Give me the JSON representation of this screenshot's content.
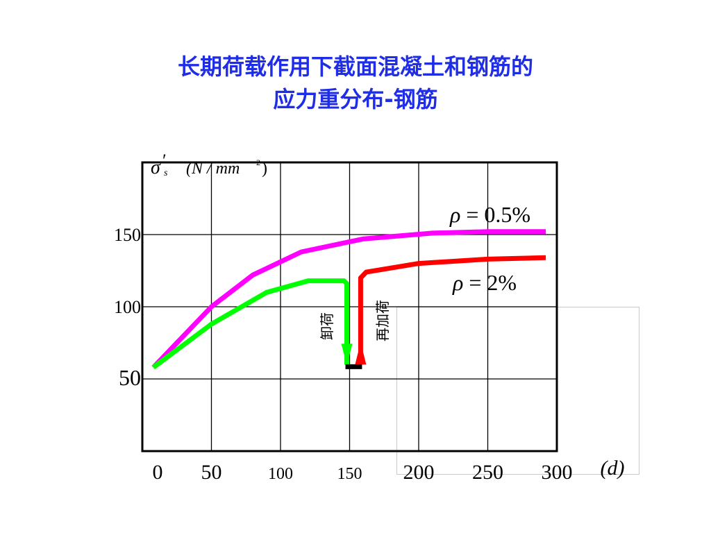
{
  "title_line1": "长期荷载作用下截面混凝土和钢筋的",
  "title_line2": "应力重分布-钢筋",
  "chart_data": {
    "type": "line",
    "ylabel_symbol": "σ",
    "ylabel_sub": "s",
    "ylabel_prime": "′",
    "ylabel_units": "(N / mm",
    "ylabel_units_sup": "2",
    "ylabel_units_close": ")",
    "xlabel": "(d)",
    "xlim": [
      0,
      300
    ],
    "ylim": [
      0,
      200
    ],
    "x_ticks": [
      {
        "label": "0",
        "value": 0
      },
      {
        "label": "50",
        "value": 50
      },
      {
        "label": "100",
        "value": 100
      },
      {
        "label": "150",
        "value": 150
      },
      {
        "label": "200",
        "value": 200
      },
      {
        "label": "250",
        "value": 250
      },
      {
        "label": "300",
        "value": 300
      }
    ],
    "y_ticks": [
      {
        "label": "50",
        "value": 50
      },
      {
        "label": "100",
        "value": 100
      },
      {
        "label": "150",
        "value": 150
      }
    ],
    "series": [
      {
        "name": "ρ = 0.5%",
        "label_symbol": "ρ",
        "label_rest": " = 0.5%",
        "color": "#ff00ff",
        "points": [
          [
            8,
            58
          ],
          [
            50,
            100
          ],
          [
            80,
            122
          ],
          [
            115,
            138
          ],
          [
            160,
            147
          ],
          [
            210,
            151
          ],
          [
            250,
            152
          ],
          [
            292,
            152
          ]
        ]
      },
      {
        "name": "ρ = 2%",
        "label_symbol": "ρ",
        "label_rest": " = 2%",
        "color": "#ff0000",
        "points": [
          [
            158,
            60
          ],
          [
            158,
            120
          ],
          [
            162,
            124
          ],
          [
            200,
            130
          ],
          [
            250,
            133
          ],
          [
            292,
            134
          ]
        ]
      },
      {
        "name": "green",
        "color": "#00ff00",
        "points": [
          [
            8,
            58
          ],
          [
            50,
            88
          ],
          [
            90,
            110
          ],
          [
            120,
            118
          ],
          [
            146,
            118
          ],
          [
            148,
            116
          ],
          [
            148,
            60
          ]
        ]
      }
    ],
    "annotations": [
      {
        "text": "卸荷",
        "x": 136,
        "y": 88,
        "color": "#000000"
      },
      {
        "text": "再加荷",
        "x": 172,
        "y": 88,
        "color": "#000000"
      }
    ],
    "arrow_down_color": "#00ff00",
    "arrow_up_color": "#ff0000",
    "unload_bar_color": "#000000"
  }
}
